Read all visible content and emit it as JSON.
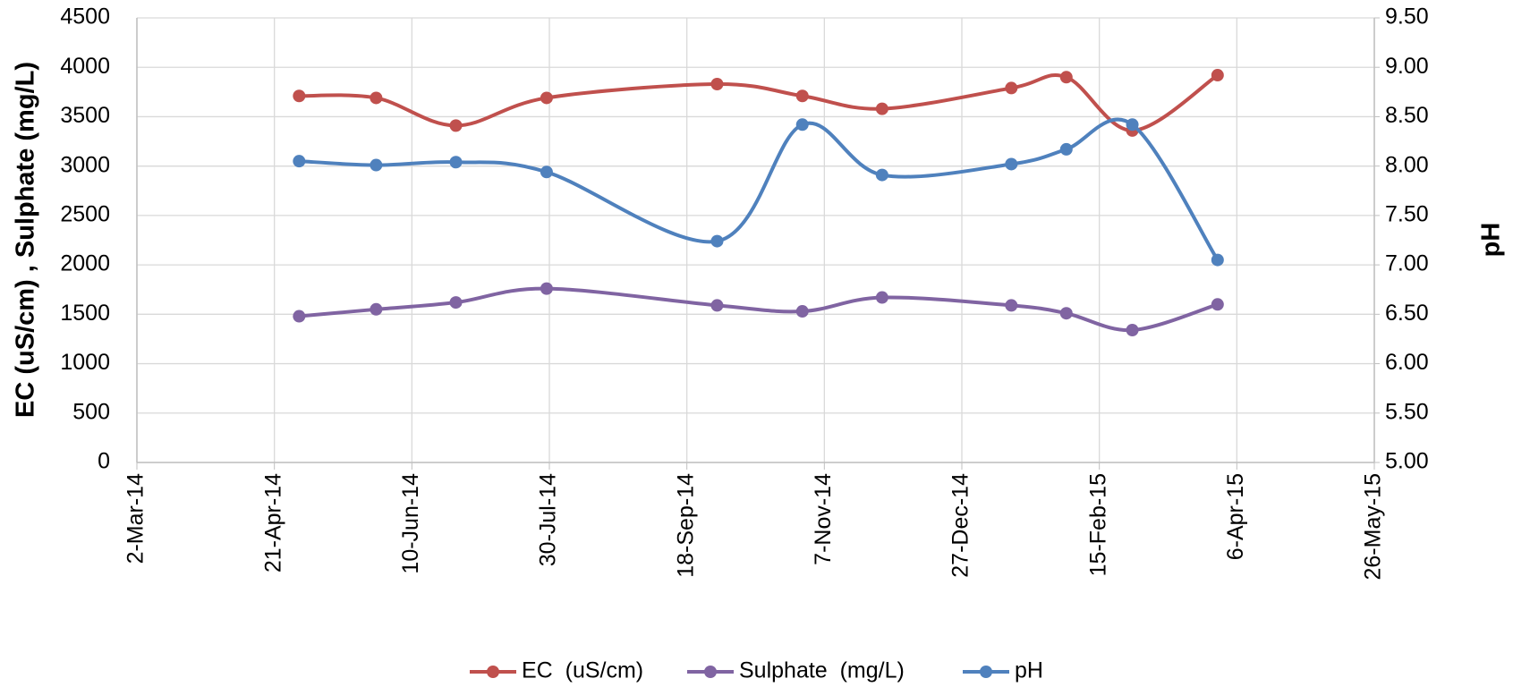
{
  "chart_data": {
    "type": "line",
    "y_label": "EC (uS/cm) , Sulphate (mg/L)",
    "y2_label": "pH",
    "x": [
      "2014-04-30",
      "2014-05-28",
      "2014-06-26",
      "2014-07-29",
      "2014-09-29",
      "2014-10-30",
      "2014-11-28",
      "2015-01-14",
      "2015-02-03",
      "2015-02-27",
      "2015-03-30"
    ],
    "series": [
      {
        "name": "EC  (uS/cm)",
        "color": "#c0504d",
        "values": [
          3710,
          3690,
          3410,
          3690,
          3830,
          3710,
          3580,
          3790,
          3900,
          3360,
          3920
        ]
      },
      {
        "name": "Sulphate  (mg/L)",
        "color": "#8064a2",
        "values": [
          1480,
          1550,
          1620,
          1760,
          1590,
          1530,
          1670,
          1590,
          1510,
          1340,
          1600
        ]
      },
      {
        "name": "pH",
        "color": "#4f81bd",
        "axis": "y2",
        "values": [
          8.05,
          8.01,
          8.04,
          7.94,
          7.24,
          8.42,
          7.91,
          8.02,
          8.17,
          8.42,
          7.05
        ]
      }
    ],
    "xlim": [
      "2014-03-02",
      "2015-05-26"
    ],
    "xticks": [
      {
        "value": "2014-03-02",
        "label": "2-Mar-14"
      },
      {
        "value": "2014-04-21",
        "label": "21-Apr-14"
      },
      {
        "value": "2014-06-10",
        "label": "10-Jun-14"
      },
      {
        "value": "2014-07-30",
        "label": "30-Jul-14"
      },
      {
        "value": "2014-09-18",
        "label": "18-Sep-14"
      },
      {
        "value": "2014-11-07",
        "label": "7-Nov-14"
      },
      {
        "value": "2014-12-27",
        "label": "27-Dec-14"
      },
      {
        "value": "2015-02-15",
        "label": "15-Feb-15"
      },
      {
        "value": "2015-04-06",
        "label": "6-Apr-15"
      },
      {
        "value": "2015-05-26",
        "label": "26-May-15"
      }
    ],
    "ylim": [
      0,
      4500
    ],
    "yticks": [
      0,
      500,
      1000,
      1500,
      2000,
      2500,
      3000,
      3500,
      4000,
      4500
    ],
    "y2lim": [
      5,
      9.5
    ],
    "y2ticks": [
      {
        "value": 5,
        "label": "5.00"
      },
      {
        "value": 5.5,
        "label": "5.50"
      },
      {
        "value": 6,
        "label": "6.00"
      },
      {
        "value": 6.5,
        "label": "6.50"
      },
      {
        "value": 7,
        "label": "7.00"
      },
      {
        "value": 7.5,
        "label": "7.50"
      },
      {
        "value": 8,
        "label": "8.00"
      },
      {
        "value": 8.5,
        "label": "8.50"
      },
      {
        "value": 9,
        "label": "9.00"
      },
      {
        "value": 9.5,
        "label": "9.50"
      }
    ],
    "grid": true,
    "smooth": true,
    "legend": "bottom"
  }
}
